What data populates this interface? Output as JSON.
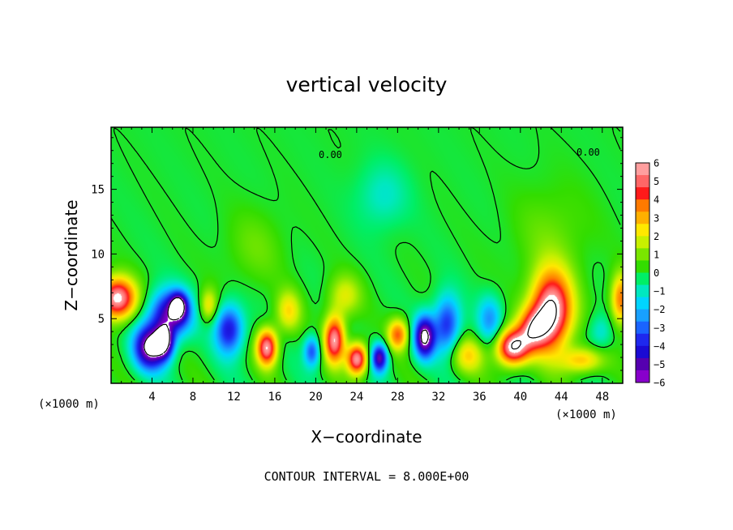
{
  "chart_data": {
    "type": "heatmap",
    "title": "vertical velocity",
    "xlabel": "X−coordinate",
    "ylabel": "Z−coordinate",
    "x_unit": "(×1000 m)",
    "xlim": [
      0,
      50
    ],
    "ylim": [
      0,
      19.8
    ],
    "x_ticks": [
      4,
      8,
      12,
      16,
      20,
      24,
      28,
      32,
      36,
      40,
      44,
      48
    ],
    "y_ticks": [
      5,
      10,
      15
    ],
    "colorbar": {
      "range": [
        -6,
        6
      ],
      "labels": [
        "6",
        "5",
        "4",
        "3",
        "2",
        "1",
        "0",
        "−1",
        "−2",
        "−3",
        "−4",
        "−5",
        "−6"
      ],
      "colors": [
        "#ff9e9e",
        "#ff6666",
        "#ff1a1a",
        "#ff7a00",
        "#ffb000",
        "#ffe800",
        "#c8f000",
        "#7ae600",
        "#33dd00",
        "#00ee66",
        "#00e8c0",
        "#00d4ff",
        "#18a0ff",
        "#1a64ff",
        "#1e28ee",
        "#1a0ad4",
        "#5500b0",
        "#8800cc"
      ]
    },
    "contour_label": "0.00",
    "contour_interval_text": "CONTOUR INTERVAL = 8.000E+00",
    "features": [
      {
        "x": 0.6,
        "z": 6.6,
        "w": 6.5,
        "sx": 1.8,
        "sz": 1.6
      },
      {
        "x": 3.8,
        "z": 2.8,
        "w": -6.5,
        "sx": 1.6,
        "sz": 1.7
      },
      {
        "x": 5.8,
        "z": 5.4,
        "w": -5.5,
        "sx": 2.0,
        "sz": 1.8
      },
      {
        "x": 6.6,
        "z": 6.0,
        "w": -4.5,
        "sx": 0.8,
        "sz": 1.0
      },
      {
        "x": 5.2,
        "z": 3.2,
        "w": -5.0,
        "sx": 0.9,
        "sz": 1.2
      },
      {
        "x": 11.5,
        "z": 4.2,
        "w": -4.5,
        "sx": 1.4,
        "sz": 1.9
      },
      {
        "x": 9.5,
        "z": 6.0,
        "w": 2.5,
        "sx": 0.9,
        "sz": 1.3
      },
      {
        "x": 15.2,
        "z": 2.8,
        "w": 6.0,
        "sx": 1.0,
        "sz": 1.4
      },
      {
        "x": 17.3,
        "z": 5.6,
        "w": 2.5,
        "sx": 1.2,
        "sz": 1.6
      },
      {
        "x": 19.6,
        "z": 2.5,
        "w": -3.5,
        "sx": 0.8,
        "sz": 1.2
      },
      {
        "x": 21.8,
        "z": 3.4,
        "w": 6.0,
        "sx": 1.0,
        "sz": 1.8
      },
      {
        "x": 24.0,
        "z": 1.9,
        "w": 6.2,
        "sx": 1.0,
        "sz": 1.2
      },
      {
        "x": 22.8,
        "z": 6.8,
        "w": 2.0,
        "sx": 1.6,
        "sz": 1.6
      },
      {
        "x": 26.2,
        "z": 2.0,
        "w": -5.5,
        "sx": 0.8,
        "sz": 1.1
      },
      {
        "x": 28.0,
        "z": 3.8,
        "w": 4.0,
        "sx": 1.0,
        "sz": 1.2
      },
      {
        "x": 30.6,
        "z": 3.6,
        "w": -6.5,
        "sx": 1.0,
        "sz": 1.6
      },
      {
        "x": 32.8,
        "z": 4.6,
        "w": -4.0,
        "sx": 1.3,
        "sz": 2.2
      },
      {
        "x": 34.8,
        "z": 2.2,
        "w": 2.5,
        "sx": 1.6,
        "sz": 1.4
      },
      {
        "x": 37.0,
        "z": 5.0,
        "w": -2.5,
        "sx": 1.2,
        "sz": 1.8
      },
      {
        "x": 43.0,
        "z": 5.6,
        "w": 7.0,
        "sx": 2.0,
        "sz": 3.0
      },
      {
        "x": 39.2,
        "z": 2.8,
        "w": 6.5,
        "sx": 1.6,
        "sz": 1.4
      },
      {
        "x": 41.2,
        "z": 4.2,
        "w": 4.0,
        "sx": 1.5,
        "sz": 1.6
      },
      {
        "x": 46.0,
        "z": 1.8,
        "w": 3.0,
        "sx": 2.0,
        "sz": 1.0
      },
      {
        "x": 49.8,
        "z": 6.5,
        "w": 4.0,
        "sx": 1.0,
        "sz": 2.0
      },
      {
        "x": 47.8,
        "z": 4.0,
        "w": -1.5,
        "sx": 1.2,
        "sz": 1.4
      },
      {
        "x": 26.5,
        "z": 14.5,
        "w": -1.2,
        "sx": 2.5,
        "sz": 2.5
      },
      {
        "x": 14.0,
        "z": 10.5,
        "w": 0.8,
        "sx": 3.0,
        "sz": 3.0
      },
      {
        "x": 43.0,
        "z": 11.5,
        "w": 0.8,
        "sx": 4.0,
        "sz": 4.0
      }
    ]
  }
}
